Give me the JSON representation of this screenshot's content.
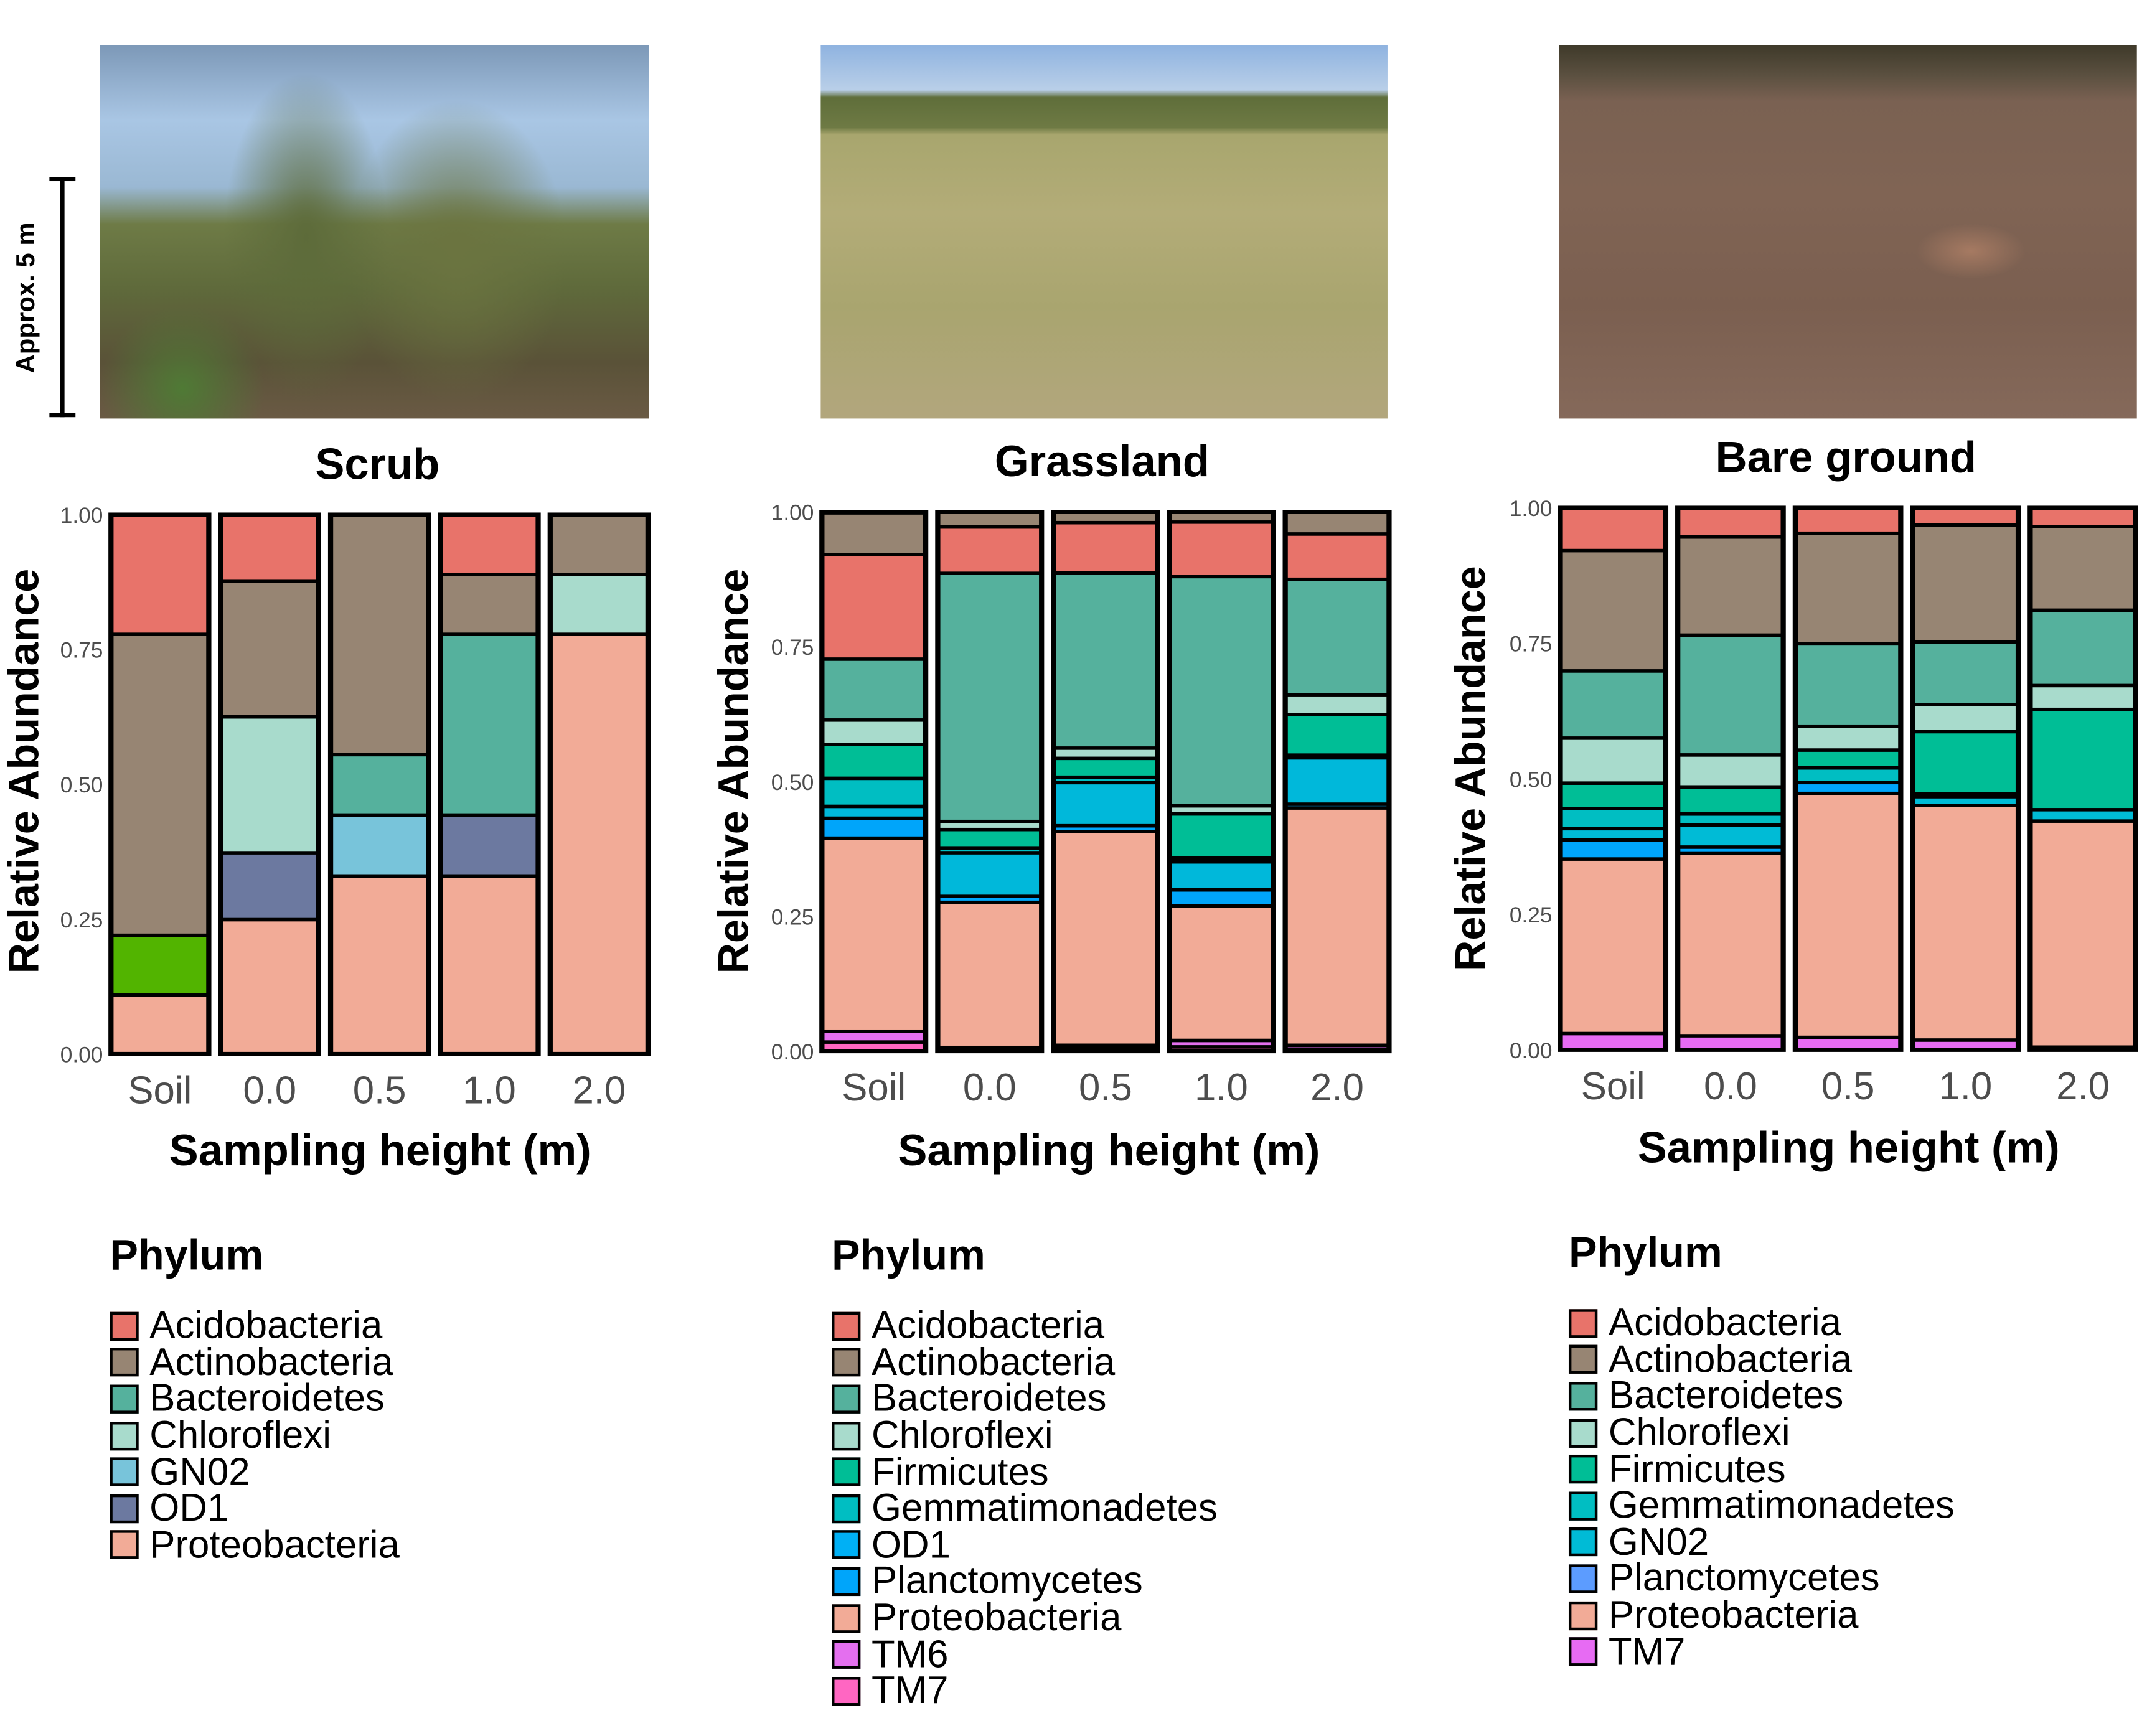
{
  "photos": {
    "scale_label": "Approx. 5 m"
  },
  "chart_data": [
    {
      "type": "bar",
      "stacked": true,
      "title": "Scrub",
      "xlabel": "Sampling height (m)",
      "ylabel": "Relative Abundance",
      "ylim": [
        0,
        1
      ],
      "yticks": [
        "0.00",
        "0.25",
        "0.50",
        "0.75",
        "1.00"
      ],
      "categories": [
        "Soil",
        "0.0",
        "0.5",
        "1.0",
        "2.0"
      ],
      "series": [
        {
          "name": "Proteobacteria",
          "color": "#F2AB97",
          "values": [
            0.109,
            0.249,
            0.33,
            0.33,
            0.778
          ]
        },
        {
          "name": "",
          "color": "#52B400",
          "values": [
            0.111,
            0,
            0,
            0,
            0
          ]
        },
        {
          "name": "OD1",
          "color": "#6C79A0",
          "values": [
            0,
            0.124,
            0,
            0.113,
            0
          ]
        },
        {
          "name": "GN02",
          "color": "#78C4DA",
          "values": [
            0,
            0,
            0.113,
            0,
            0
          ]
        },
        {
          "name": "Chloroflexi",
          "color": "#A8DBCC",
          "values": [
            0,
            0.252,
            0,
            0,
            0.111
          ]
        },
        {
          "name": "Bacteroidetes",
          "color": "#55B19D",
          "values": [
            0,
            0,
            0.112,
            0.335,
            0
          ]
        },
        {
          "name": "Actinobacteria",
          "color": "#978573",
          "values": [
            0.558,
            0.251,
            0.445,
            0.111,
            0.111
          ]
        },
        {
          "name": "Acidobacteria",
          "color": "#E8736A",
          "values": [
            0.222,
            0.124,
            0,
            0.111,
            0
          ]
        }
      ],
      "legend": {
        "title": "Phylum",
        "items": [
          {
            "label": "Acidobacteria",
            "color": "#E8736A"
          },
          {
            "label": "Actinobacteria",
            "color": "#978573"
          },
          {
            "label": "Bacteroidetes",
            "color": "#55B19D"
          },
          {
            "label": "Chloroflexi",
            "color": "#A8DBCC"
          },
          {
            "label": "GN02",
            "color": "#78C4DA"
          },
          {
            "label": "OD1",
            "color": "#6C79A0"
          },
          {
            "label": "Proteobacteria",
            "color": "#F2AB97"
          }
        ]
      }
    },
    {
      "type": "bar",
      "stacked": true,
      "title": "Grassland",
      "xlabel": "Sampling height (m)",
      "ylabel": "Relative Abundance",
      "ylim": [
        0,
        1
      ],
      "yticks": [
        "0.00",
        "0.25",
        "0.50",
        "0.75",
        "1.00"
      ],
      "categories": [
        "Soil",
        "0.0",
        "0.5",
        "1.0",
        "2.0"
      ],
      "series": [
        {
          "name": "TM7",
          "color": "#FF66C2",
          "values": [
            0.017,
            0.003,
            0.005,
            0.008,
            0.004
          ]
        },
        {
          "name": "TM6",
          "color": "#E46FEF",
          "values": [
            0.02,
            0.004,
            0.006,
            0.012,
            0.007
          ]
        },
        {
          "name": "Proteobacteria",
          "color": "#F2AB97",
          "values": [
            0.358,
            0.269,
            0.396,
            0.249,
            0.44
          ]
        },
        {
          "name": "Planctomycetes",
          "color": "#00A5FA",
          "values": [
            0.037,
            0.011,
            0.011,
            0.03,
            0.007
          ]
        },
        {
          "name": "OD1",
          "color": "#00B8DA",
          "values": [
            0.022,
            0.081,
            0.08,
            0.052,
            0.086
          ]
        },
        {
          "name": "Gemmatimonadetes",
          "color": "#00BEC2",
          "values": [
            0.052,
            0.009,
            0.01,
            0.007,
            0.005
          ]
        },
        {
          "name": "Firmicutes",
          "color": "#00BE96",
          "values": [
            0.063,
            0.034,
            0.035,
            0.082,
            0.075
          ]
        },
        {
          "name": "Chloroflexi",
          "color": "#A8DBCC",
          "values": [
            0.045,
            0.015,
            0.019,
            0.015,
            0.037
          ]
        },
        {
          "name": "Bacteroidetes",
          "color": "#55B19D",
          "values": [
            0.113,
            0.46,
            0.325,
            0.425,
            0.214
          ]
        },
        {
          "name": "Acidobacteria",
          "color": "#E8736A",
          "values": [
            0.194,
            0.086,
            0.093,
            0.101,
            0.084
          ]
        },
        {
          "name": "Actinobacteria",
          "color": "#978573",
          "values": [
            0.077,
            0.028,
            0.019,
            0.019,
            0.041
          ]
        }
      ],
      "legend": {
        "title": "Phylum",
        "items": [
          {
            "label": "Acidobacteria",
            "color": "#E8736A"
          },
          {
            "label": "Actinobacteria",
            "color": "#978573"
          },
          {
            "label": "Bacteroidetes",
            "color": "#55B19D"
          },
          {
            "label": "Chloroflexi",
            "color": "#A8DBCC"
          },
          {
            "label": "Firmicutes",
            "color": "#00BE96"
          },
          {
            "label": "Gemmatimonadetes",
            "color": "#00BEC2"
          },
          {
            "label": "OD1",
            "color": "#00B0F5"
          },
          {
            "label": "Planctomycetes",
            "color": "#00A5FA"
          },
          {
            "label": "Proteobacteria",
            "color": "#F2AB97"
          },
          {
            "label": "TM6",
            "color": "#E46FEF"
          },
          {
            "label": "TM7",
            "color": "#FF66C2"
          }
        ]
      }
    },
    {
      "type": "bar",
      "stacked": true,
      "title": "Bare ground",
      "xlabel": "Sampling height (m)",
      "ylabel": "Relative Abundance",
      "ylim": [
        0,
        1
      ],
      "yticks": [
        "0.00",
        "0.25",
        "0.50",
        "0.75",
        "1.00"
      ],
      "categories": [
        "Soil",
        "0.0",
        "0.5",
        "1.0",
        "2.0"
      ],
      "series": [
        {
          "name": "TM7",
          "color": "#E76BF3",
          "values": [
            0.03,
            0.026,
            0.023,
            0.018,
            0.005
          ]
        },
        {
          "name": "Proteobacteria",
          "color": "#F2AB97",
          "values": [
            0.322,
            0.337,
            0.45,
            0.433,
            0.417
          ]
        },
        {
          "name": "Planctomycetes",
          "color": "#00A5FA",
          "values": [
            0.035,
            0.011,
            0.02,
            0,
            0
          ]
        },
        {
          "name": "GN02",
          "color": "#00BBD6",
          "values": [
            0.021,
            0.041,
            0,
            0.016,
            0.021
          ]
        },
        {
          "name": "Gemmatimonadetes",
          "color": "#00BEC2",
          "values": [
            0.037,
            0.02,
            0.027,
            0.005,
            0
          ]
        },
        {
          "name": "Firmicutes",
          "color": "#00BE96",
          "values": [
            0.047,
            0.05,
            0.033,
            0.115,
            0.185
          ]
        },
        {
          "name": "Chloroflexi",
          "color": "#A8DBCC",
          "values": [
            0.083,
            0.059,
            0.044,
            0.05,
            0.044
          ]
        },
        {
          "name": "Bacteroidetes",
          "color": "#55B19D",
          "values": [
            0.124,
            0.221,
            0.152,
            0.115,
            0.139
          ]
        },
        {
          "name": "Actinobacteria",
          "color": "#978573",
          "values": [
            0.222,
            0.181,
            0.204,
            0.216,
            0.154
          ]
        },
        {
          "name": "Acidobacteria",
          "color": "#E8736A",
          "values": [
            0.079,
            0.053,
            0.047,
            0.032,
            0.035
          ]
        }
      ],
      "legend": {
        "title": "Phylum",
        "items": [
          {
            "label": "Acidobacteria",
            "color": "#E8736A"
          },
          {
            "label": "Actinobacteria",
            "color": "#978573"
          },
          {
            "label": "Bacteroidetes",
            "color": "#55B19D"
          },
          {
            "label": "Chloroflexi",
            "color": "#A8DBCC"
          },
          {
            "label": "Firmicutes",
            "color": "#00BE96"
          },
          {
            "label": "Gemmatimonadetes",
            "color": "#00BEC2"
          },
          {
            "label": "GN02",
            "color": "#00BBD6"
          },
          {
            "label": "Planctomycetes",
            "color": "#5C9CFF"
          },
          {
            "label": "Proteobacteria",
            "color": "#F2AB97"
          },
          {
            "label": "TM7",
            "color": "#E76BF3"
          }
        ]
      }
    }
  ]
}
